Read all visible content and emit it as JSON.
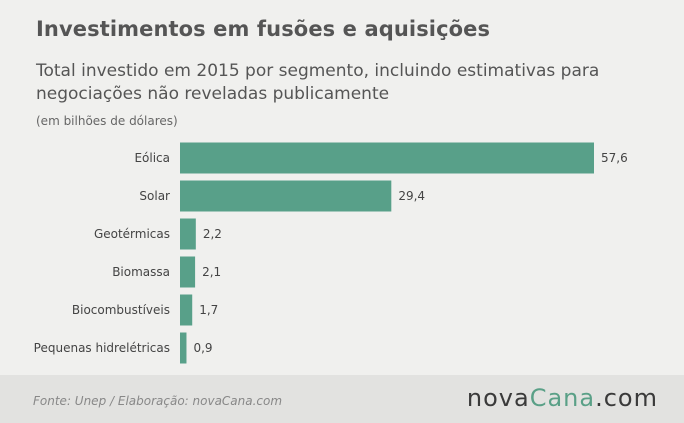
{
  "header": {
    "title": "Investimentos em fusões e aquisições",
    "subtitle": "Total investido em 2015 por segmento, incluindo estimativas para negociações não reveladas publicamente",
    "unit": "(em bilhões de dólares)"
  },
  "chart_data": {
    "type": "bar",
    "orientation": "horizontal",
    "categories": [
      "Eólica",
      "Solar",
      "Geotérmicas",
      "Biomassa",
      "Biocombustíveis",
      "Pequenas hidrelétricas"
    ],
    "values": [
      57.6,
      29.4,
      2.2,
      2.1,
      1.7,
      0.9
    ],
    "value_labels": [
      "57,6",
      "29,4",
      "2,2",
      "2,1",
      "1,7",
      "0,9"
    ],
    "bar_color": "#58a089",
    "xlim": [
      0,
      57.6
    ],
    "grid": false,
    "legend": "none"
  },
  "footer": {
    "source": "Fonte:  Unep / Elaboração:  novaCana.com",
    "logo_main": "nova",
    "logo_accent": "Cana",
    "logo_tail": ".com"
  },
  "colors": {
    "background": "#f0f0ee",
    "footer_background": "#e2e2e0",
    "accent": "#5aa087"
  }
}
